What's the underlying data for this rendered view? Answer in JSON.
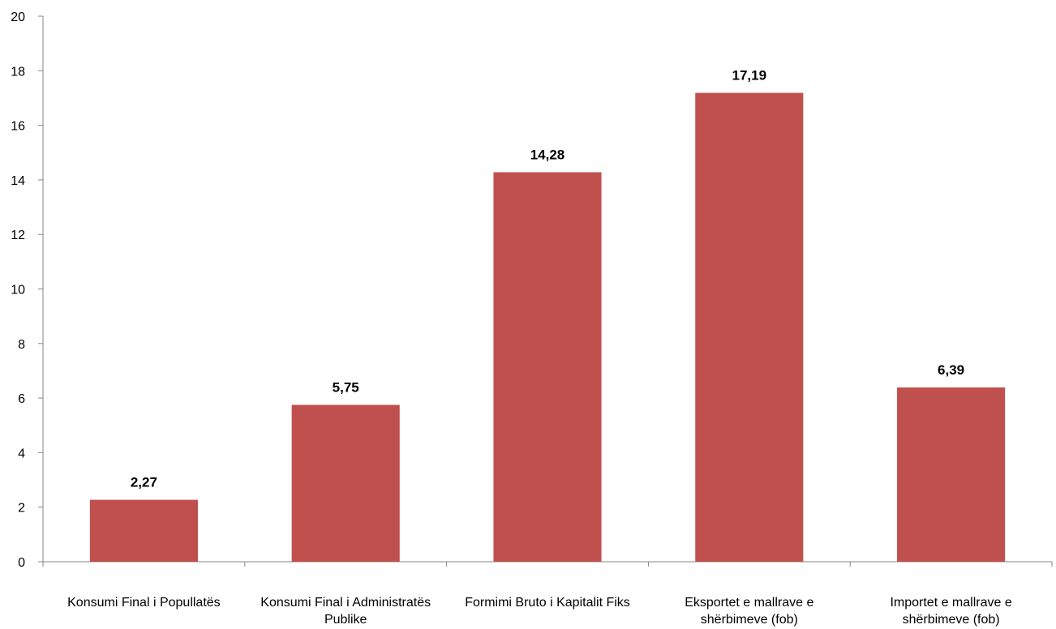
{
  "chart_data": {
    "type": "bar",
    "categories": [
      [
        "Konsumi Final i Popullatës"
      ],
      [
        "Konsumi Final i Administratës",
        "Publike"
      ],
      [
        "Formimi Bruto i Kapitalit Fiks"
      ],
      [
        "Eksportet e mallrave e",
        "shërbimeve (fob)"
      ],
      [
        "Importet e mallrave e",
        "shërbimeve (fob)"
      ]
    ],
    "values": [
      2.27,
      5.75,
      14.28,
      17.19,
      6.39
    ],
    "data_labels": [
      "2,27",
      "5,75",
      "14,28",
      "17,19",
      "6,39"
    ],
    "ylim": [
      0,
      20
    ],
    "yticks": [
      0,
      2,
      4,
      6,
      8,
      10,
      12,
      14,
      16,
      18,
      20
    ],
    "bar_color": "#C0504D",
    "grid": false,
    "title": "",
    "xlabel": "",
    "ylabel": ""
  }
}
